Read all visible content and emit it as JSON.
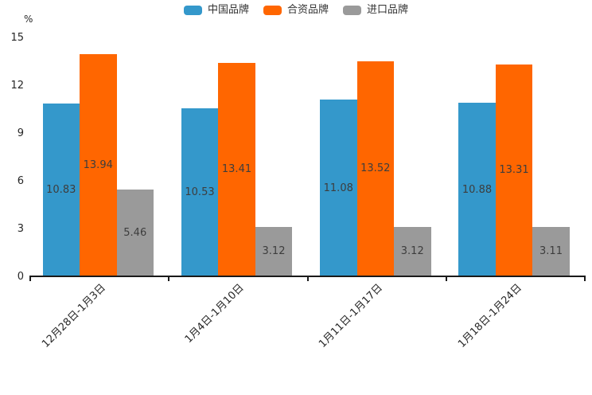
{
  "chart_data": {
    "type": "bar",
    "title": "",
    "unit_label": "%",
    "categories": [
      "12月28日-1月3日",
      "1月4日-1月10日",
      "1月11日-1月17日",
      "1月18日-1月24日"
    ],
    "series": [
      {
        "name": "中国品牌",
        "color": "#3498cb",
        "values": [
          10.83,
          10.53,
          11.08,
          10.88
        ]
      },
      {
        "name": "合资品牌",
        "color": "#ff6600",
        "values": [
          13.94,
          13.41,
          13.52,
          13.31
        ]
      },
      {
        "name": "进口品牌",
        "color": "#9a9a9a",
        "values": [
          5.46,
          3.12,
          3.12,
          3.11
        ]
      }
    ],
    "ylim": [
      0,
      15
    ],
    "yticks": [
      0,
      3,
      6,
      9,
      12,
      15
    ],
    "grid": false,
    "legend_position": "top-center",
    "value_labels_shown": true,
    "value_label_color": "#3d3d3d",
    "axis_color": "#1a1a1a",
    "xtick_rotation_deg": 45
  }
}
